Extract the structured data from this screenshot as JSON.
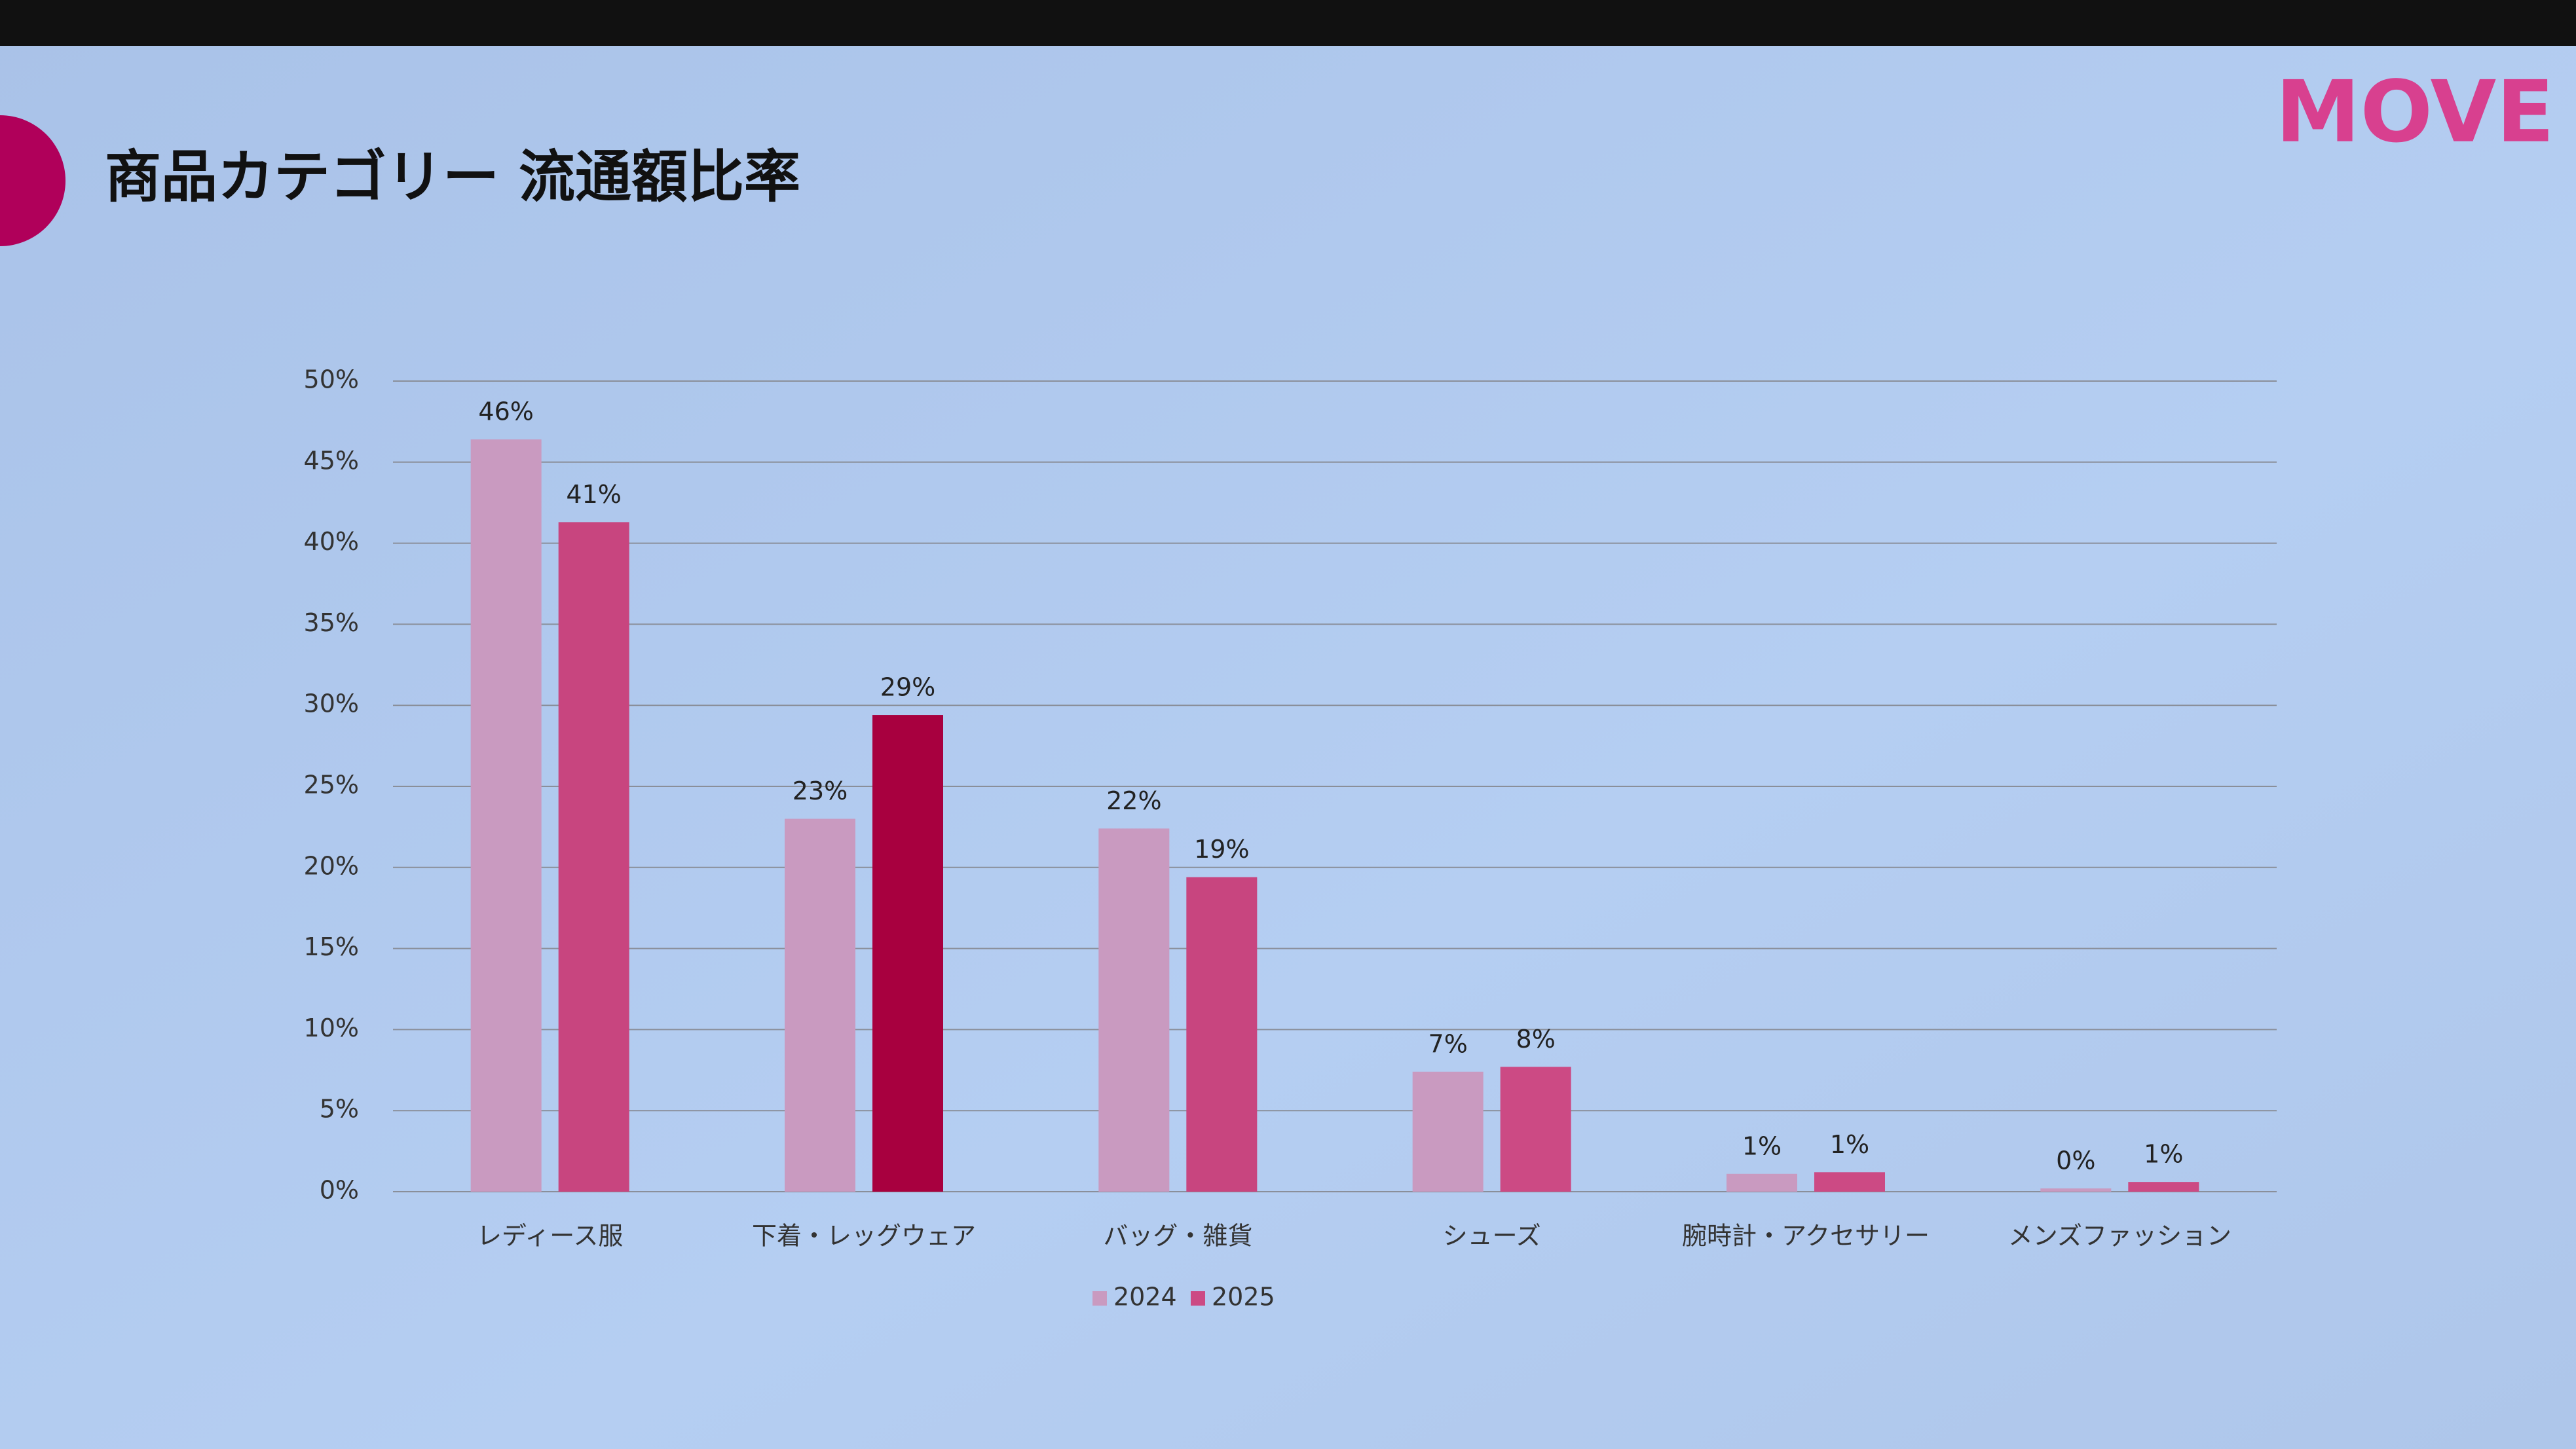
{
  "logo": "MOVE",
  "chart_data": {
    "type": "bar",
    "title": "商品カテゴリー 流通額比率",
    "categories": [
      "レディース服",
      "下着・レッグウェア",
      "バッグ・雑貨",
      "シューズ",
      "腕時計・アクセサリー",
      "メンズファッション"
    ],
    "series": [
      {
        "name": "2024",
        "color": "#c99ac0",
        "values": [
          46.4,
          23.0,
          22.4,
          7.4,
          1.1,
          0.2
        ],
        "value_labels": [
          "46%",
          "23%",
          "22%",
          "7%",
          "1%",
          "0%"
        ]
      },
      {
        "name": "2025",
        "color": "#cc4a84",
        "colors": [
          "#c8457f",
          "#a8003f",
          "#c8457f",
          "#cc4a84",
          "#cc4a84",
          "#cc4a84"
        ],
        "values": [
          41.3,
          29.4,
          19.4,
          7.7,
          1.2,
          0.6
        ],
        "value_labels": [
          "41%",
          "29%",
          "19%",
          "8%",
          "1%",
          "1%"
        ]
      }
    ],
    "ylim": [
      0,
      50
    ],
    "yticks": [
      {
        "value": 0,
        "label": "0%"
      },
      {
        "value": 5,
        "label": "5%"
      },
      {
        "value": 10,
        "label": "10%"
      },
      {
        "value": 15,
        "label": "15%"
      },
      {
        "value": 20,
        "label": "20%"
      },
      {
        "value": 25,
        "label": "25%"
      },
      {
        "value": 30,
        "label": "30%"
      },
      {
        "value": 35,
        "label": "35%"
      },
      {
        "value": 40,
        "label": "40%"
      },
      {
        "value": 45,
        "label": "45%"
      },
      {
        "value": 50,
        "label": "50%"
      }
    ],
    "grid": true,
    "legend": "bottom"
  }
}
